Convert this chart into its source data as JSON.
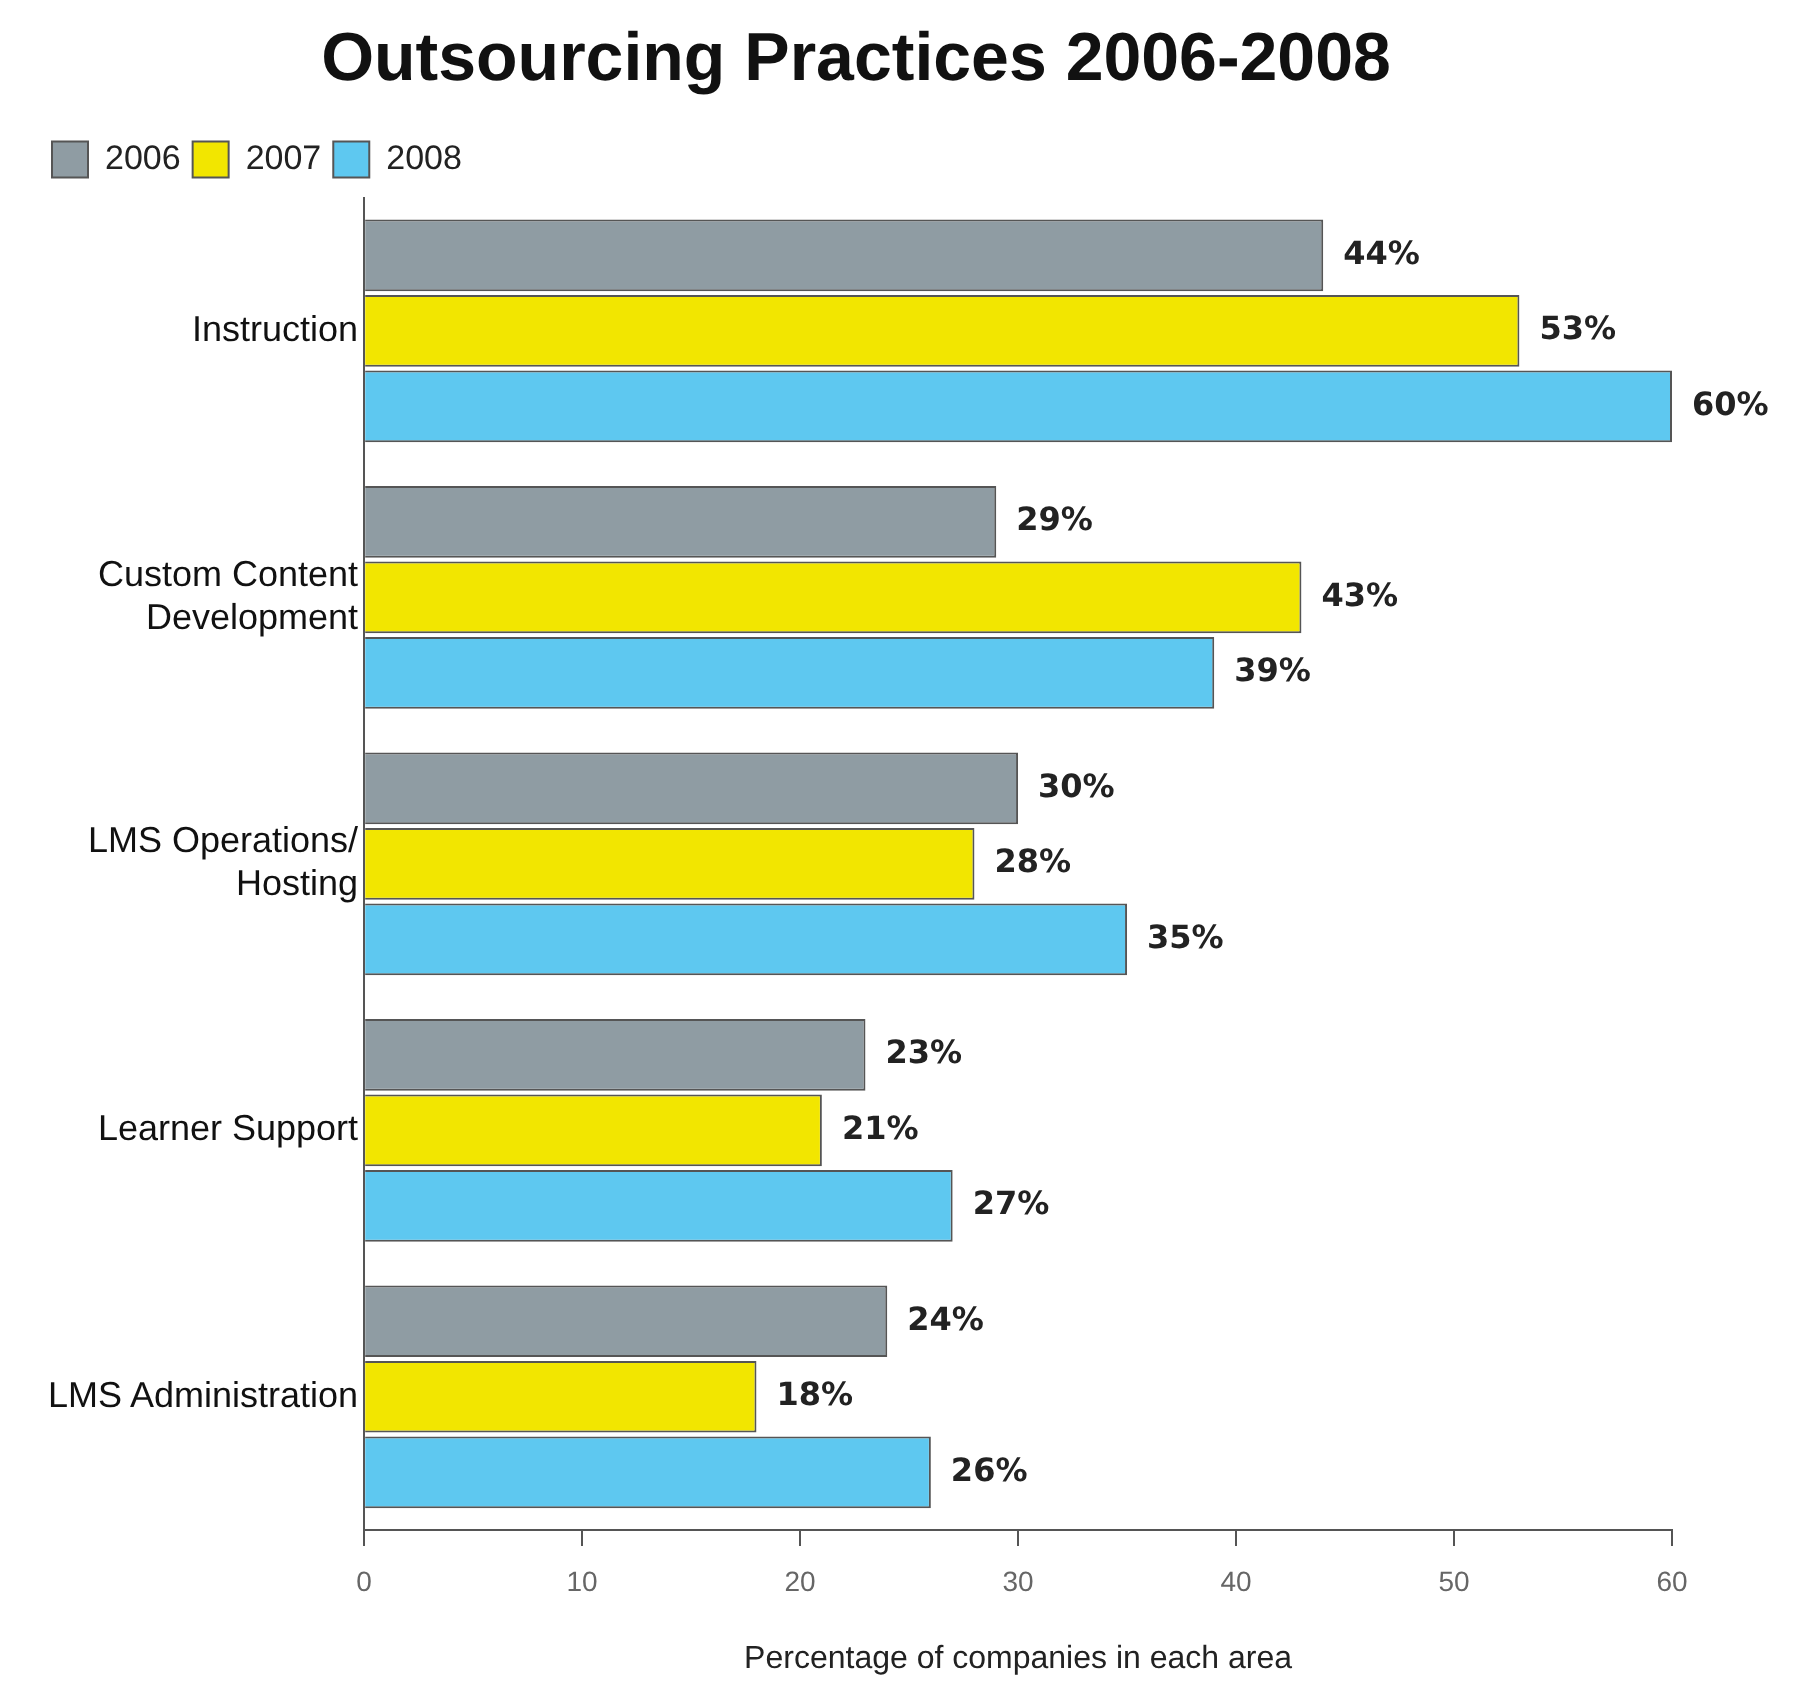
{
  "chart_data": {
    "type": "bar",
    "orientation": "horizontal",
    "title": "Outsourcing Practices 2006-2008",
    "xlabel": "Percentage of companies in each area",
    "categories": [
      "Instruction",
      "Custom Content Development",
      "LMS Operations/ Hosting",
      "Learner Support",
      "LMS Administration"
    ],
    "series": [
      {
        "name": "2006",
        "color": "#8f9ca3",
        "values": [
          44,
          29,
          30,
          23,
          24
        ],
        "value_labels": [
          "44%",
          "29%",
          "30%",
          "23%",
          "24%"
        ]
      },
      {
        "name": "2007",
        "color": "#f2e600",
        "values": [
          53,
          43,
          28,
          21,
          18
        ],
        "value_labels": [
          "53%",
          "43%",
          "28%",
          "21%",
          "18%"
        ]
      },
      {
        "name": "2008",
        "color": "#5ec8f0",
        "values": [
          60,
          39,
          35,
          27,
          26
        ],
        "value_labels": [
          "60%",
          "39%",
          "35%",
          "27%",
          "26%"
        ]
      }
    ],
    "xlim": [
      0,
      60
    ],
    "xticks": [
      0,
      10,
      20,
      30,
      40,
      50,
      60
    ],
    "grid": false,
    "legend": "top left"
  }
}
